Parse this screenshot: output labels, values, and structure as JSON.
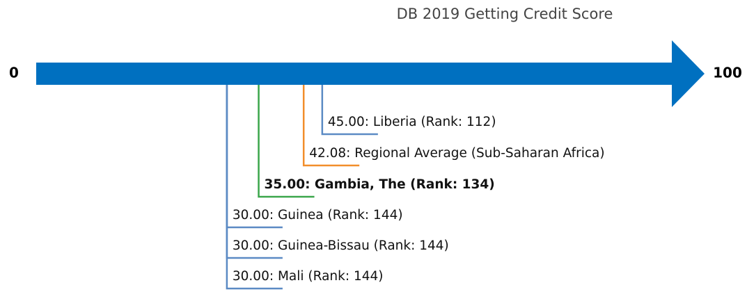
{
  "chart_data": {
    "type": "number_line",
    "title": "DB 2019 Getting Credit Score",
    "xlim": [
      0,
      100
    ],
    "xticks": [
      0,
      100
    ],
    "axis_color": "#0070c0",
    "values": [
      45,
      42.08,
      35,
      30,
      30,
      30
    ],
    "value_labels": [
      "45.00: Liberia (Rank: 112)",
      "42.08: Regional Average (Sub-Saharan Africa)",
      "35.00: Gambia, The (Rank: 134)",
      "30.00: Guinea (Rank: 144)",
      "30.00: Guinea-Bissau (Rank: 144)",
      "30.00: Mali (Rank: 144)"
    ],
    "colors": [
      "#5b8ac4",
      "#f28e2b",
      "#3aa64a",
      "#5b8ac4",
      "#5b8ac4",
      "#5b8ac4"
    ],
    "bold": [
      false,
      false,
      true,
      false,
      false,
      false
    ]
  }
}
